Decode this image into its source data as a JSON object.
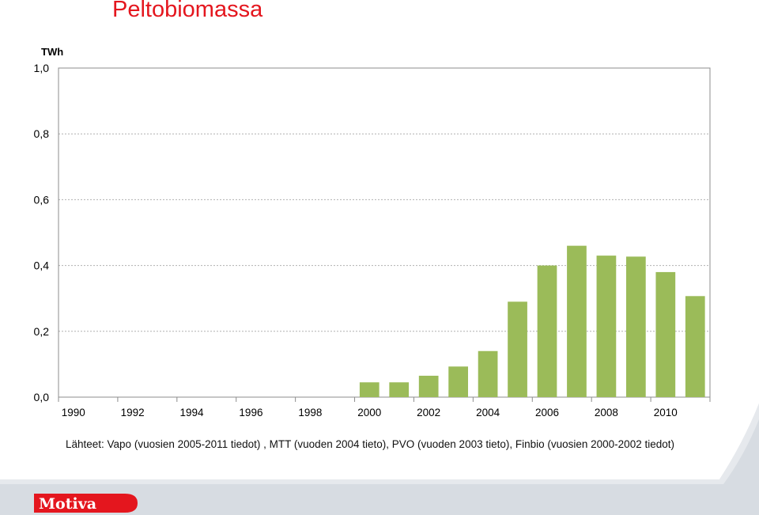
{
  "title": "Peltobiomassa",
  "chart_data": {
    "type": "bar",
    "title": "Peltobiomassa",
    "ylabel": "TWh",
    "xlabel": "",
    "ylim": [
      0,
      1.0
    ],
    "y_ticks": [
      "1,0",
      "0,8",
      "0,6",
      "0,4",
      "0,2",
      "0,0"
    ],
    "x_tick_labels": [
      "1990",
      "1992",
      "1994",
      "1996",
      "1998",
      "2000",
      "2002",
      "2004",
      "2006",
      "2008",
      "2010"
    ],
    "categories": [
      "1990",
      "1991",
      "1992",
      "1993",
      "1994",
      "1995",
      "1996",
      "1997",
      "1998",
      "1999",
      "2000",
      "2001",
      "2002",
      "2003",
      "2004",
      "2005",
      "2006",
      "2007",
      "2008",
      "2009",
      "2010",
      "2011"
    ],
    "values": [
      0,
      0,
      0,
      0,
      0,
      0,
      0,
      0,
      0,
      0,
      0.045,
      0.045,
      0.065,
      0.093,
      0.14,
      0.29,
      0.4,
      0.46,
      0.43,
      0.427,
      0.38,
      0.307
    ],
    "grid": true,
    "legend": "none",
    "bar_color": "#9bbb59"
  },
  "source": "Lähteet: Vapo (vuosien 2005-2011 tiedot) , MTT (vuoden 2004 tieto), PVO (vuoden 2003 tieto), Finbio (vuosien 2000-2002 tiedot)",
  "logo": {
    "text": "Motiva"
  }
}
